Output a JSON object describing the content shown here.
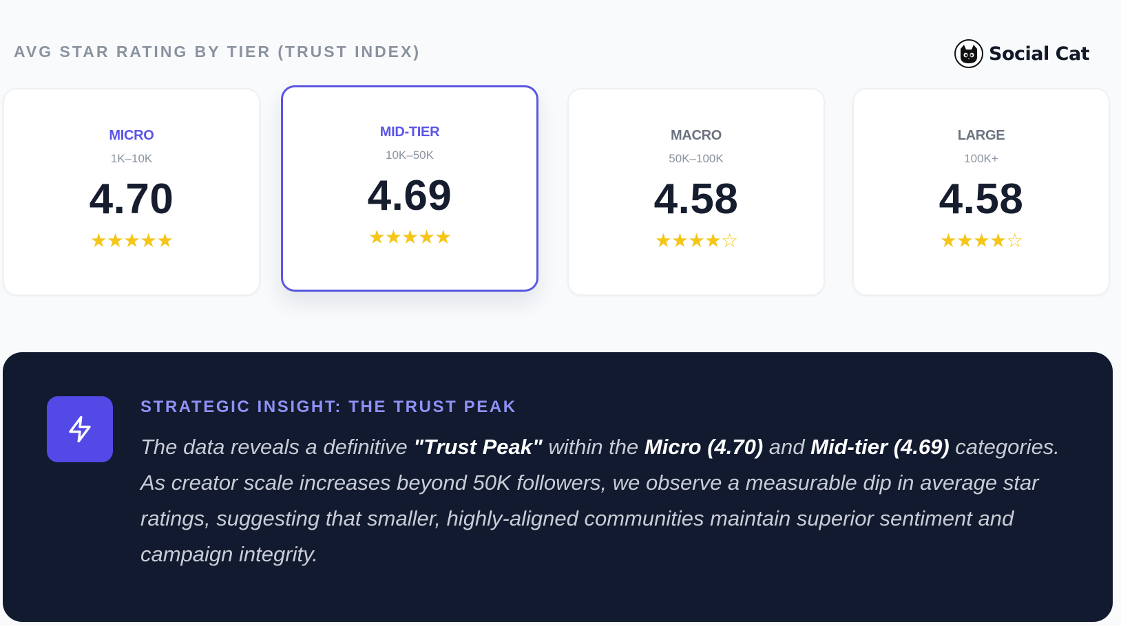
{
  "header": {
    "title": "AVG STAR RATING BY TIER (TRUST INDEX)",
    "brand_name": "Social Cat",
    "brand_icon": "cat-logo-icon"
  },
  "colors": {
    "accent": "#5b57e0",
    "tier_active": "#5b54e6",
    "tier_inactive": "#6b7280",
    "star": "#f5c518",
    "panel_bg": "#111a2e",
    "icon_bg": "#5249e6",
    "insight_heading": "#8f92f5"
  },
  "tiers": [
    {
      "name": "MICRO",
      "range": "1K–10K",
      "rating": "4.70",
      "stars_filled": 5,
      "stars_total": 5
    },
    {
      "name": "MID-TIER",
      "range": "10K–50K",
      "rating": "4.69",
      "stars_filled": 5,
      "stars_total": 5
    },
    {
      "name": "MACRO",
      "range": "50K–100K",
      "rating": "4.58",
      "stars_filled": 4,
      "stars_total": 5
    },
    {
      "name": "LARGE",
      "range": "100K+",
      "rating": "4.58",
      "stars_filled": 4,
      "stars_total": 5
    }
  ],
  "insight": {
    "icon": "lightning-bolt-icon",
    "heading": "STRATEGIC INSIGHT: THE TRUST PEAK",
    "part1": "The data reveals a definitive ",
    "highlight1": "\"Trust Peak\"",
    "part2": " within the ",
    "highlight2": "Micro (4.70)",
    "part3": " and ",
    "highlight3": "Mid-tier (4.69)",
    "part4": " categories. As creator scale increases beyond 50K followers, we observe a measurable dip in average star ratings, suggesting that smaller, highly-aligned communities maintain superior sentiment and campaign integrity."
  }
}
